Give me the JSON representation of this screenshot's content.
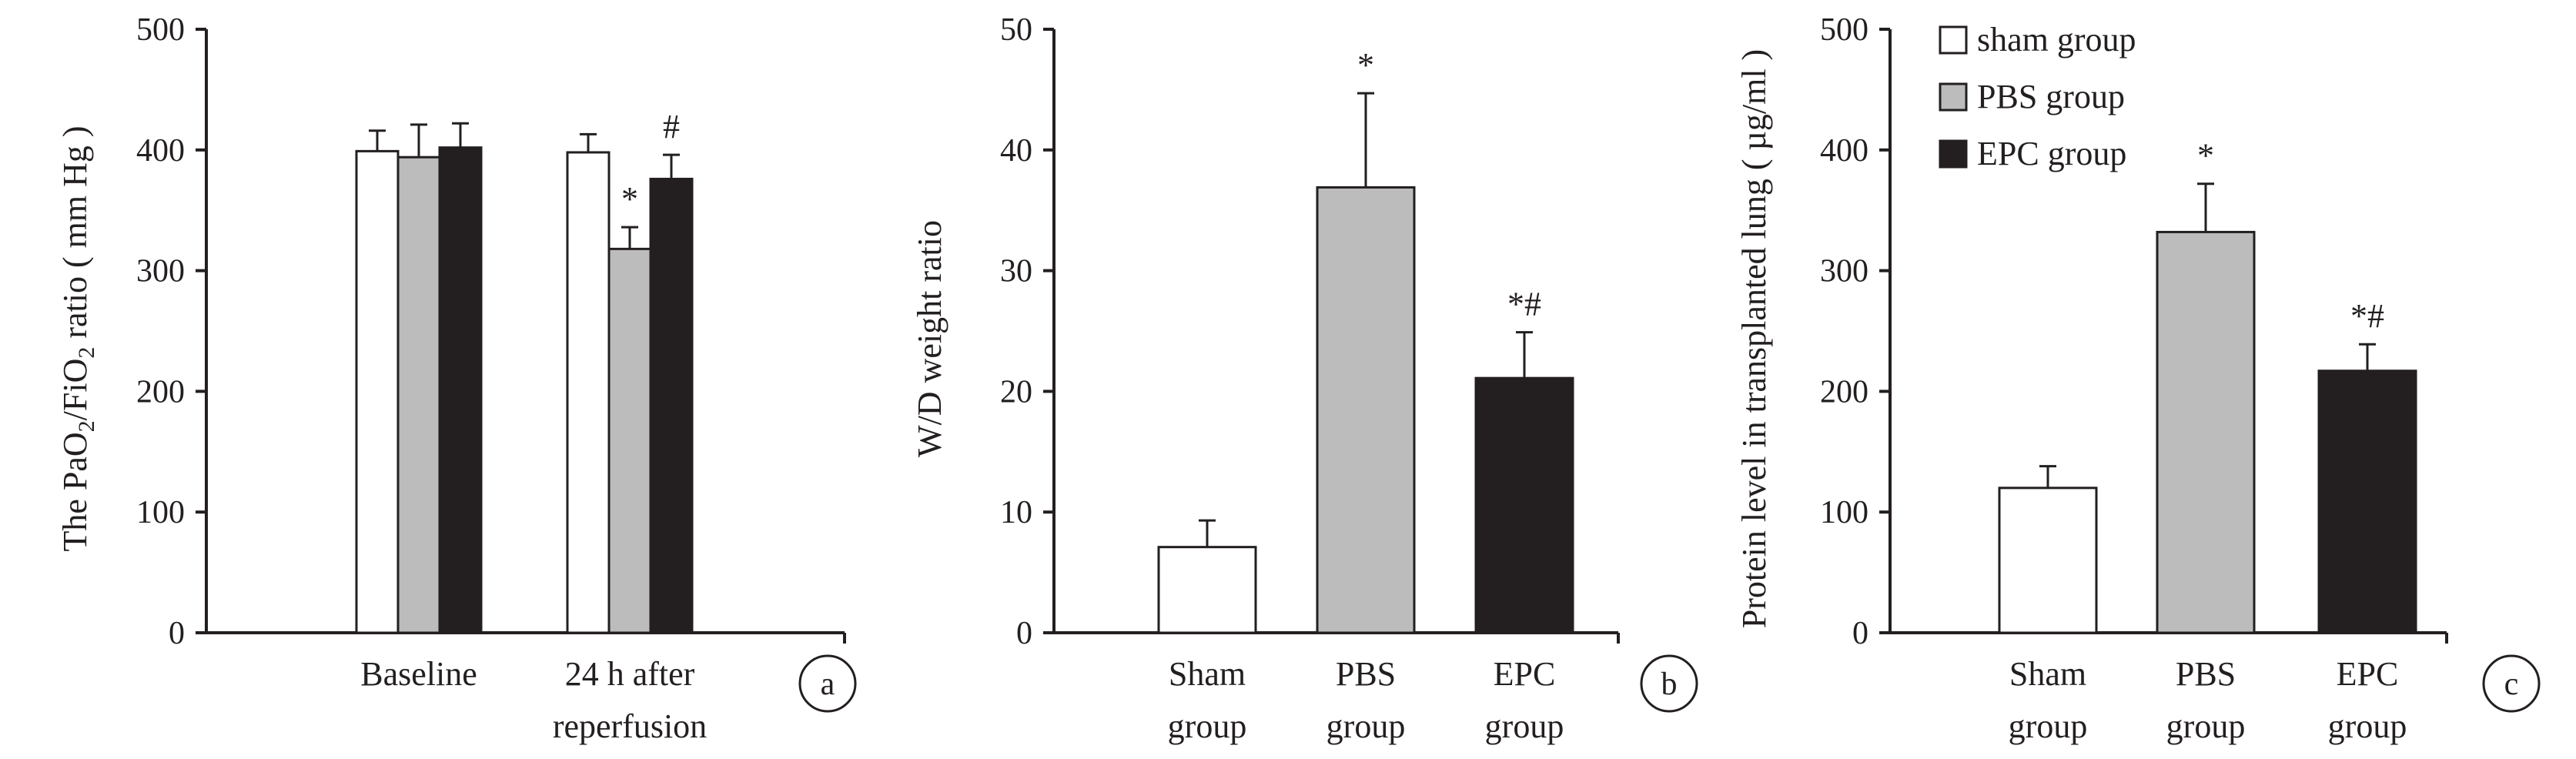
{
  "colors": {
    "sham": "#ffffff",
    "pbs": "#bcbcbc",
    "epc": "#231f20",
    "axis": "#231f20"
  },
  "chart_data": [
    {
      "type": "bar",
      "panel_label": "a",
      "ylabel": {
        "pre": "The PaO",
        "sub1": "2",
        "mid": "/FiO",
        "sub2": "2",
        "post": " ratio ( mm Hg )"
      },
      "ylim": [
        0,
        500
      ],
      "yticks": [
        0,
        100,
        200,
        300,
        400,
        500
      ],
      "categories": [
        [
          "Baseline"
        ],
        [
          "24 h after",
          "reperfusion"
        ]
      ],
      "series": [
        {
          "name": "sham group",
          "color_key": "sham",
          "values": [
            399,
            398
          ],
          "errors": [
            17,
            15
          ],
          "annotations": [
            "",
            ""
          ]
        },
        {
          "name": "PBS group",
          "color_key": "pbs",
          "values": [
            394,
            318
          ],
          "errors": [
            27,
            18
          ],
          "annotations": [
            "",
            "*"
          ]
        },
        {
          "name": "EPC group",
          "color_key": "epc",
          "values": [
            402,
            376
          ],
          "errors": [
            20,
            20
          ],
          "annotations": [
            "",
            "#"
          ]
        }
      ],
      "grid": false
    },
    {
      "type": "bar",
      "panel_label": "b",
      "ylabel": "W/D weight ratio",
      "ylim": [
        0,
        50
      ],
      "yticks": [
        0,
        10,
        20,
        30,
        40,
        50
      ],
      "categories": [
        [
          "Sham",
          "group"
        ],
        [
          "PBS",
          "group"
        ],
        [
          "EPC",
          "group"
        ]
      ],
      "series": [
        {
          "values": [
            7.1,
            36.9,
            21.1
          ],
          "errors": [
            2.2,
            7.8,
            3.8
          ],
          "color_keys": [
            "sham",
            "pbs",
            "epc"
          ],
          "annotations": [
            "",
            "*",
            "*#"
          ]
        }
      ],
      "grid": false
    },
    {
      "type": "bar",
      "panel_label": "c",
      "ylabel": "Protein level in transplanted lung ( µg/ml )",
      "ylim": [
        0,
        500
      ],
      "yticks": [
        0,
        100,
        200,
        300,
        400,
        500
      ],
      "categories": [
        [
          "Sham",
          "group"
        ],
        [
          "PBS",
          "group"
        ],
        [
          "EPC",
          "group"
        ]
      ],
      "series": [
        {
          "values": [
            120,
            332,
            217
          ],
          "errors": [
            18,
            40,
            22
          ],
          "color_keys": [
            "sham",
            "pbs",
            "epc"
          ],
          "annotations": [
            "",
            "*",
            "*#"
          ]
        }
      ],
      "legend": {
        "placement": "top-left",
        "entries": [
          {
            "label": "sham group",
            "color_key": "sham"
          },
          {
            "label": "PBS group",
            "color_key": "pbs"
          },
          {
            "label": "EPC group",
            "color_key": "epc"
          }
        ]
      },
      "grid": false
    }
  ]
}
